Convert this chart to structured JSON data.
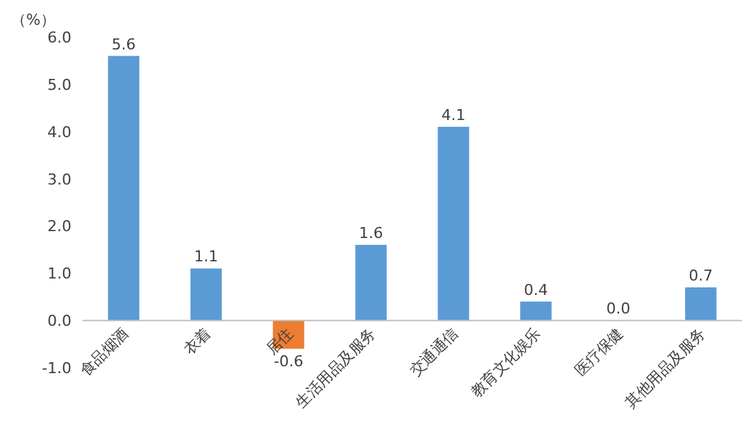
{
  "chart_data": {
    "type": "bar",
    "ylabel": "（%）",
    "categories": [
      "食品烟酒",
      "衣着",
      "居住",
      "生活用品及服务",
      "交通通信",
      "教育文化娱乐",
      "医疗保健",
      "其他用品及服务"
    ],
    "values": [
      5.6,
      1.1,
      -0.6,
      1.6,
      4.1,
      0.4,
      0.0,
      0.7
    ],
    "colors": [
      "#5b9bd5",
      "#5b9bd5",
      "#ed7d31",
      "#5b9bd5",
      "#5b9bd5",
      "#5b9bd5",
      "#5b9bd5",
      "#5b9bd5"
    ],
    "value_labels": [
      "5.6",
      "1.1",
      "-0.6",
      "1.6",
      "4.1",
      "0.4",
      "0.0",
      "0.7"
    ],
    "ylim": [
      -1,
      6
    ],
    "yticks": [
      {
        "value": -1,
        "label": "-1.0"
      },
      {
        "value": 0,
        "label": "0.0"
      },
      {
        "value": 1,
        "label": "1.0"
      },
      {
        "value": 2,
        "label": "2.0"
      },
      {
        "value": 3,
        "label": "3.0"
      },
      {
        "value": 4,
        "label": "4.0"
      },
      {
        "value": 5,
        "label": "5.0"
      },
      {
        "value": 6,
        "label": "6.0"
      }
    ]
  }
}
